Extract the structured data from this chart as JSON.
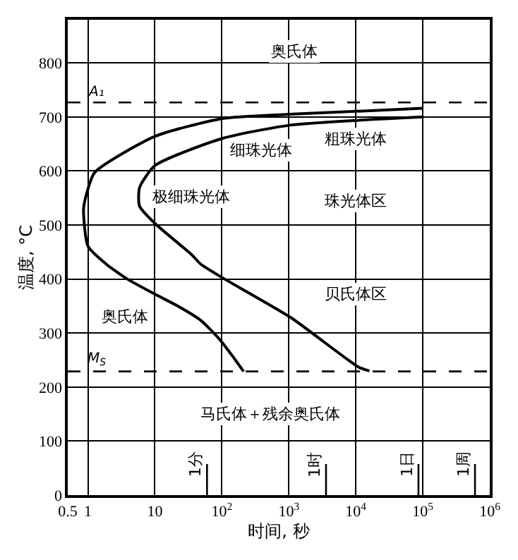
{
  "chart_data": {
    "type": "line",
    "xlabel": "时间, 秒",
    "ylabel": "温度, °C",
    "log": "x",
    "grid": true,
    "marker": "none",
    "line_style": "solid",
    "xlim": [
      0.5,
      1000000
    ],
    "ylim": [
      0,
      880
    ],
    "xticks": [
      0.5,
      1,
      10,
      {
        "value": 100,
        "label": "10$^{2}$"
      },
      {
        "value": 1000,
        "label": "10$^{3}$"
      },
      {
        "value": 10000,
        "label": "10$^{4}$"
      },
      {
        "value": 100000,
        "label": "10$^{5}$"
      },
      {
        "value": 1000000,
        "label": "10$^{6}$"
      }
    ],
    "yticks": [
      0,
      100,
      200,
      300,
      400,
      500,
      600,
      700,
      800
    ],
    "series": [
      {
        "color": "#000000",
        "x": [
          100000,
          1000,
          100,
          10,
          1.26,
          0.92,
          0.86,
          1,
          1.86,
          4,
          10,
          22,
          48,
          90,
          143,
          211
        ],
        "values": [
          716,
          705,
          697,
          664,
          597,
          550,
          528,
          461,
          428,
          399,
          372,
          350,
          324,
          290,
          258,
          229
        ]
      },
      {
        "color": "#000000",
        "x": [
          100000,
          1060,
          100,
          10,
          5.9,
          5.9,
          10,
          35.5,
          48,
          100,
          1060,
          11000,
          16000
        ],
        "values": [
          700,
          685,
          660,
          610,
          569,
          535,
          503,
          445,
          428,
          403,
          329,
          237,
          230
        ]
      }
    ],
    "ref_lines": [
      {
        "axis": "y",
        "value": 727,
        "label": "A₁",
        "color": "#000000",
        "line_style": "dashed"
      },
      {
        "axis": "y",
        "value": 229,
        "label": "M$_{S}$",
        "color": "#000000",
        "line_style": "dashed"
      }
    ],
    "annotations": [
      "奥氏体",
      "细珠光体",
      "粗珠光体",
      "极细珠光体",
      "珠光体区",
      "贝氏体区",
      "奥氏体",
      "马氏体＋残余奥氏体",
      "1分",
      "1时",
      "1日",
      "1周"
    ]
  }
}
